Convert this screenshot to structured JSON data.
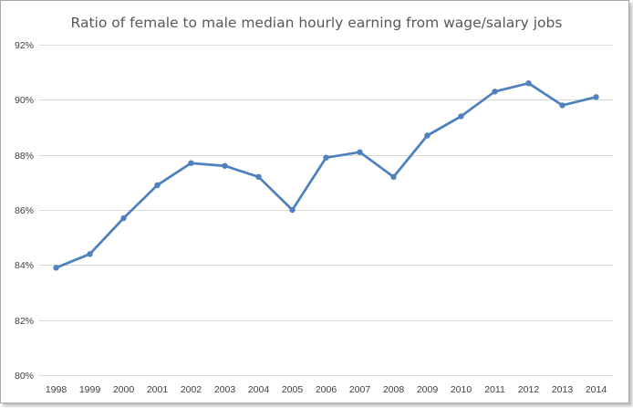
{
  "chart_data": {
    "type": "line",
    "title": "Ratio of female to male median hourly earning from wage/salary jobs",
    "xlabel": "",
    "ylabel": "",
    "categories": [
      "1998",
      "1999",
      "2000",
      "2001",
      "2002",
      "2003",
      "2004",
      "2005",
      "2006",
      "2007",
      "2008",
      "2009",
      "2010",
      "2011",
      "2012",
      "2013",
      "2014"
    ],
    "series": [
      {
        "values": [
          83.9,
          84.4,
          85.7,
          86.9,
          87.7,
          87.6,
          87.2,
          86.0,
          87.9,
          88.1,
          87.2,
          88.7,
          89.4,
          90.3,
          90.6,
          89.8,
          90.1
        ]
      }
    ],
    "ylim": [
      80,
      92
    ],
    "yticks": [
      80,
      82,
      84,
      86,
      88,
      90,
      92
    ],
    "ytick_labels": [
      "80%",
      "82%",
      "84%",
      "86%",
      "88%",
      "90%",
      "92%"
    ],
    "grid": true,
    "legend": "none",
    "line_color": "#4f81bd"
  }
}
